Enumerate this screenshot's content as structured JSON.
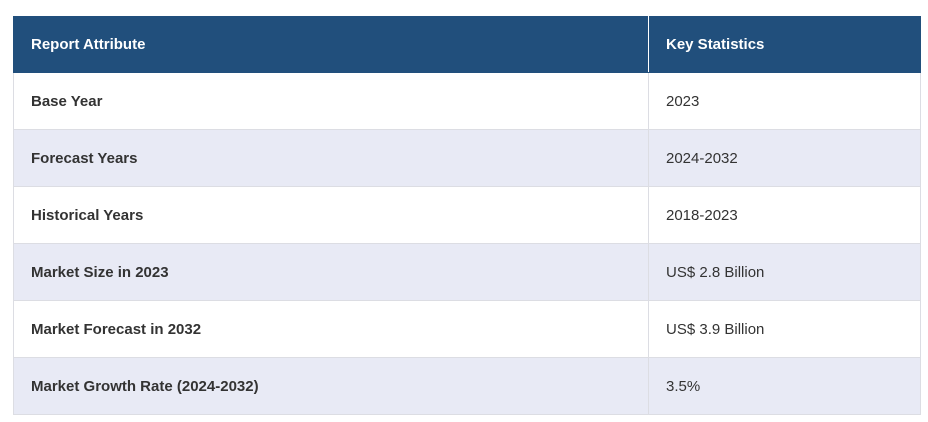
{
  "table": {
    "headers": [
      "Report Attribute",
      "Key Statistics"
    ],
    "rows": [
      [
        "Base Year",
        "2023"
      ],
      [
        "Forecast Years",
        "2024-2032"
      ],
      [
        "Historical Years",
        "2018-2023"
      ],
      [
        "Market Size in 2023",
        "US$ 2.8 Billion"
      ],
      [
        "Market Forecast in 2032",
        "US$ 3.9 Billion"
      ],
      [
        "Market Growth Rate (2024-2032)",
        "3.5%"
      ]
    ]
  }
}
